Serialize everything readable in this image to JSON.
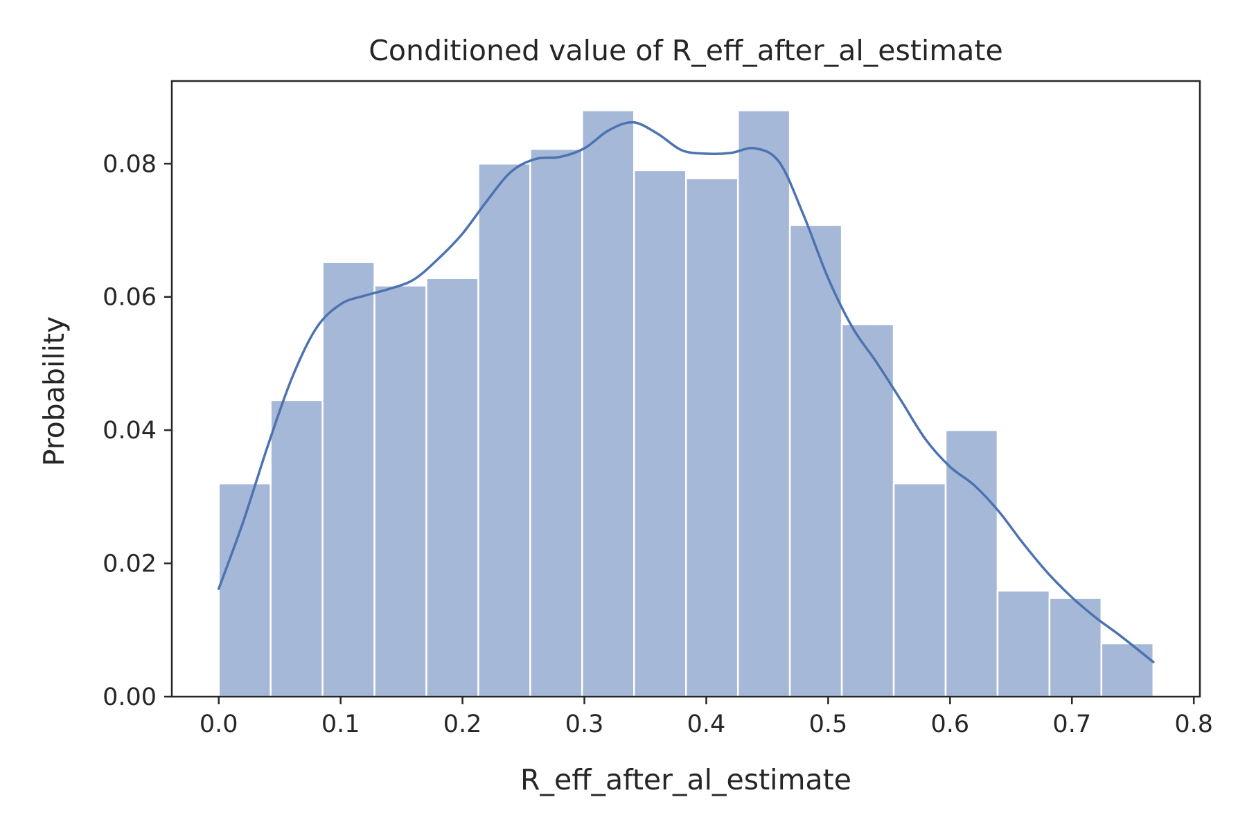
{
  "chart_data": {
    "type": "bar",
    "title": "Conditioned value of R_eff_after_al_estimate",
    "xlabel": "R_eff_after_al_estimate",
    "ylabel": "Probability",
    "xlim": [
      -0.0385,
      0.805
    ],
    "ylim": [
      0,
      0.0924
    ],
    "grid": false,
    "legend": "none",
    "x_ticks": [
      0.0,
      0.1,
      0.2,
      0.3,
      0.4,
      0.5,
      0.6,
      0.7,
      0.8
    ],
    "x_tick_labels": [
      "0.0",
      "0.1",
      "0.2",
      "0.3",
      "0.4",
      "0.5",
      "0.6",
      "0.7",
      "0.8"
    ],
    "y_ticks": [
      0.0,
      0.02,
      0.04,
      0.06,
      0.08
    ],
    "y_tick_labels": [
      "0.00",
      "0.02",
      "0.04",
      "0.06",
      "0.08"
    ],
    "bin_edges": [
      0.0,
      0.0426,
      0.0852,
      0.1278,
      0.1704,
      0.213,
      0.2556,
      0.2982,
      0.3408,
      0.3834,
      0.426,
      0.4686,
      0.5112,
      0.5538,
      0.5964,
      0.639,
      0.6816,
      0.7242,
      0.7668
    ],
    "values": [
      0.032,
      0.0445,
      0.0652,
      0.0617,
      0.0628,
      0.08,
      0.0822,
      0.088,
      0.079,
      0.0778,
      0.088,
      0.0708,
      0.0559,
      0.032,
      0.04,
      0.0159,
      0.0148,
      0.008
    ],
    "kde": {
      "x": [
        0.0,
        0.02,
        0.04,
        0.06,
        0.08,
        0.1,
        0.12,
        0.14,
        0.16,
        0.18,
        0.2,
        0.22,
        0.24,
        0.26,
        0.28,
        0.3,
        0.32,
        0.34,
        0.36,
        0.38,
        0.4,
        0.42,
        0.44,
        0.46,
        0.48,
        0.5,
        0.52,
        0.54,
        0.56,
        0.58,
        0.6,
        0.62,
        0.64,
        0.66,
        0.68,
        0.7,
        0.72,
        0.74,
        0.7668
      ],
      "y": [
        0.0162,
        0.0262,
        0.0375,
        0.0478,
        0.0553,
        0.0589,
        0.0602,
        0.0612,
        0.0626,
        0.0657,
        0.0695,
        0.0744,
        0.0788,
        0.0807,
        0.081,
        0.0823,
        0.085,
        0.0862,
        0.0845,
        0.082,
        0.0815,
        0.0816,
        0.0823,
        0.0802,
        0.0722,
        0.0628,
        0.0554,
        0.0501,
        0.0444,
        0.0386,
        0.0345,
        0.0317,
        0.0278,
        0.023,
        0.0186,
        0.0149,
        0.0118,
        0.0091,
        0.0052
      ]
    },
    "colors": {
      "bar_fill": "#4c72b0",
      "bar_opacity": 0.5,
      "bar_edge": "#ffffff",
      "kde_line": "#4c72b0",
      "axes": "#262626",
      "text": "#262626"
    }
  }
}
